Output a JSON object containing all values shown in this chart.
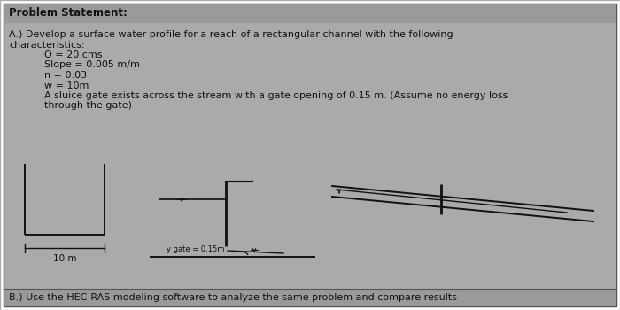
{
  "bg_color": "#aaaaaa",
  "border_color": "#666666",
  "text_color": "#111111",
  "title": "Problem Statement:",
  "line_A": "A.) Develop a surface water profile for a reach of a rectangular channel with the following",
  "line_A2": "characteristics:",
  "bullets": [
    "Q = 20 cms",
    "Slope = 0.005 m/m",
    "n = 0.03",
    "w = 10m",
    "A sluice gate exists across the stream with a gate opening of 0.15 m. (Assume no energy loss",
    "through the gate)"
  ],
  "line_B": "B.) Use the HEC-RAS modeling software to analyze the same problem and compare results",
  "font_size_title": 8.5,
  "font_size_body": 8.0,
  "font_size_small": 6.0,
  "gate_label": "y gate = 0.15m",
  "width_label": "10 m",
  "header_bar_color": "#999999",
  "bottom_bar_color": "#999999"
}
